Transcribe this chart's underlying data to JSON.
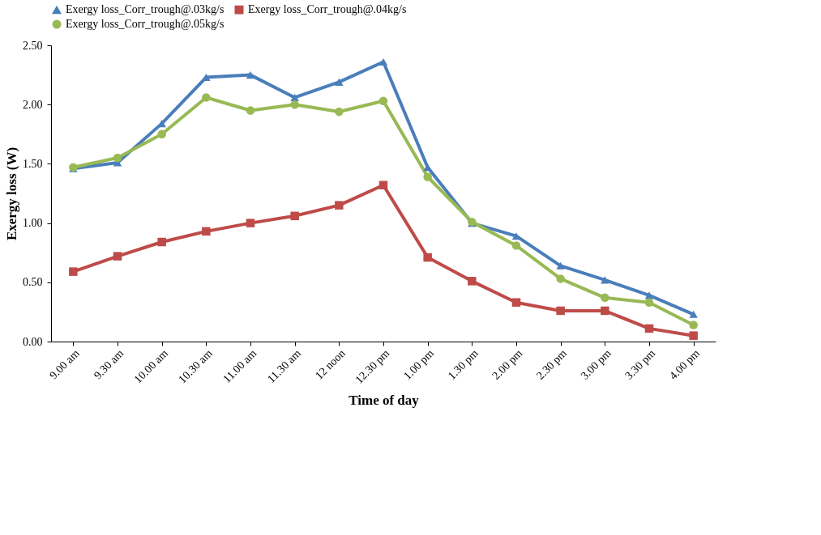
{
  "chart_data": {
    "type": "line",
    "xlabel": "Time of day",
    "ylabel": "Exergy  loss (W)",
    "categories": [
      "9.00 am",
      "9.30 am",
      "10.00 am",
      "10.30 am",
      "11.00 am",
      "11.30 am",
      "12 noon",
      "12.30 pm",
      "1.00 pm",
      "1.30 pm",
      "2.00 pm",
      "2.30 pm",
      "3.00 pm",
      "3.30 pm",
      "4.00 pm"
    ],
    "series": [
      {
        "name": "Exergy loss_Corr_trough@.03kg/s",
        "color": "#4a7ebb",
        "marker": "triangle",
        "values": [
          1.46,
          1.51,
          1.84,
          2.23,
          2.25,
          2.06,
          2.19,
          2.36,
          1.47,
          1.0,
          0.89,
          0.64,
          0.52,
          0.39,
          0.23
        ]
      },
      {
        "name": "Exergy loss_Corr_trough@.04kg/s",
        "color": "#be4b48",
        "marker": "square",
        "values": [
          0.59,
          0.72,
          0.84,
          0.93,
          1.0,
          1.06,
          1.15,
          1.32,
          0.71,
          0.51,
          0.33,
          0.26,
          0.26,
          0.11,
          0.05
        ]
      },
      {
        "name": "Exergy loss_Corr_trough@.05kg/s",
        "color": "#98b954",
        "marker": "circle",
        "values": [
          1.47,
          1.55,
          1.75,
          2.06,
          1.95,
          2.0,
          1.94,
          2.03,
          1.39,
          1.01,
          0.81,
          0.53,
          0.37,
          0.33,
          0.14
        ]
      }
    ],
    "ylim": [
      0,
      2.5
    ],
    "yticks": [
      {
        "value": 0,
        "label": "0.00"
      },
      {
        "value": 0.5,
        "label": "0.50"
      },
      {
        "value": 1.0,
        "label": "1.00"
      },
      {
        "value": 1.5,
        "label": "1.50"
      },
      {
        "value": 2.0,
        "label": "2.00"
      },
      {
        "value": 2.5,
        "label": "2.50"
      }
    ],
    "legend": "top",
    "grid": false
  }
}
